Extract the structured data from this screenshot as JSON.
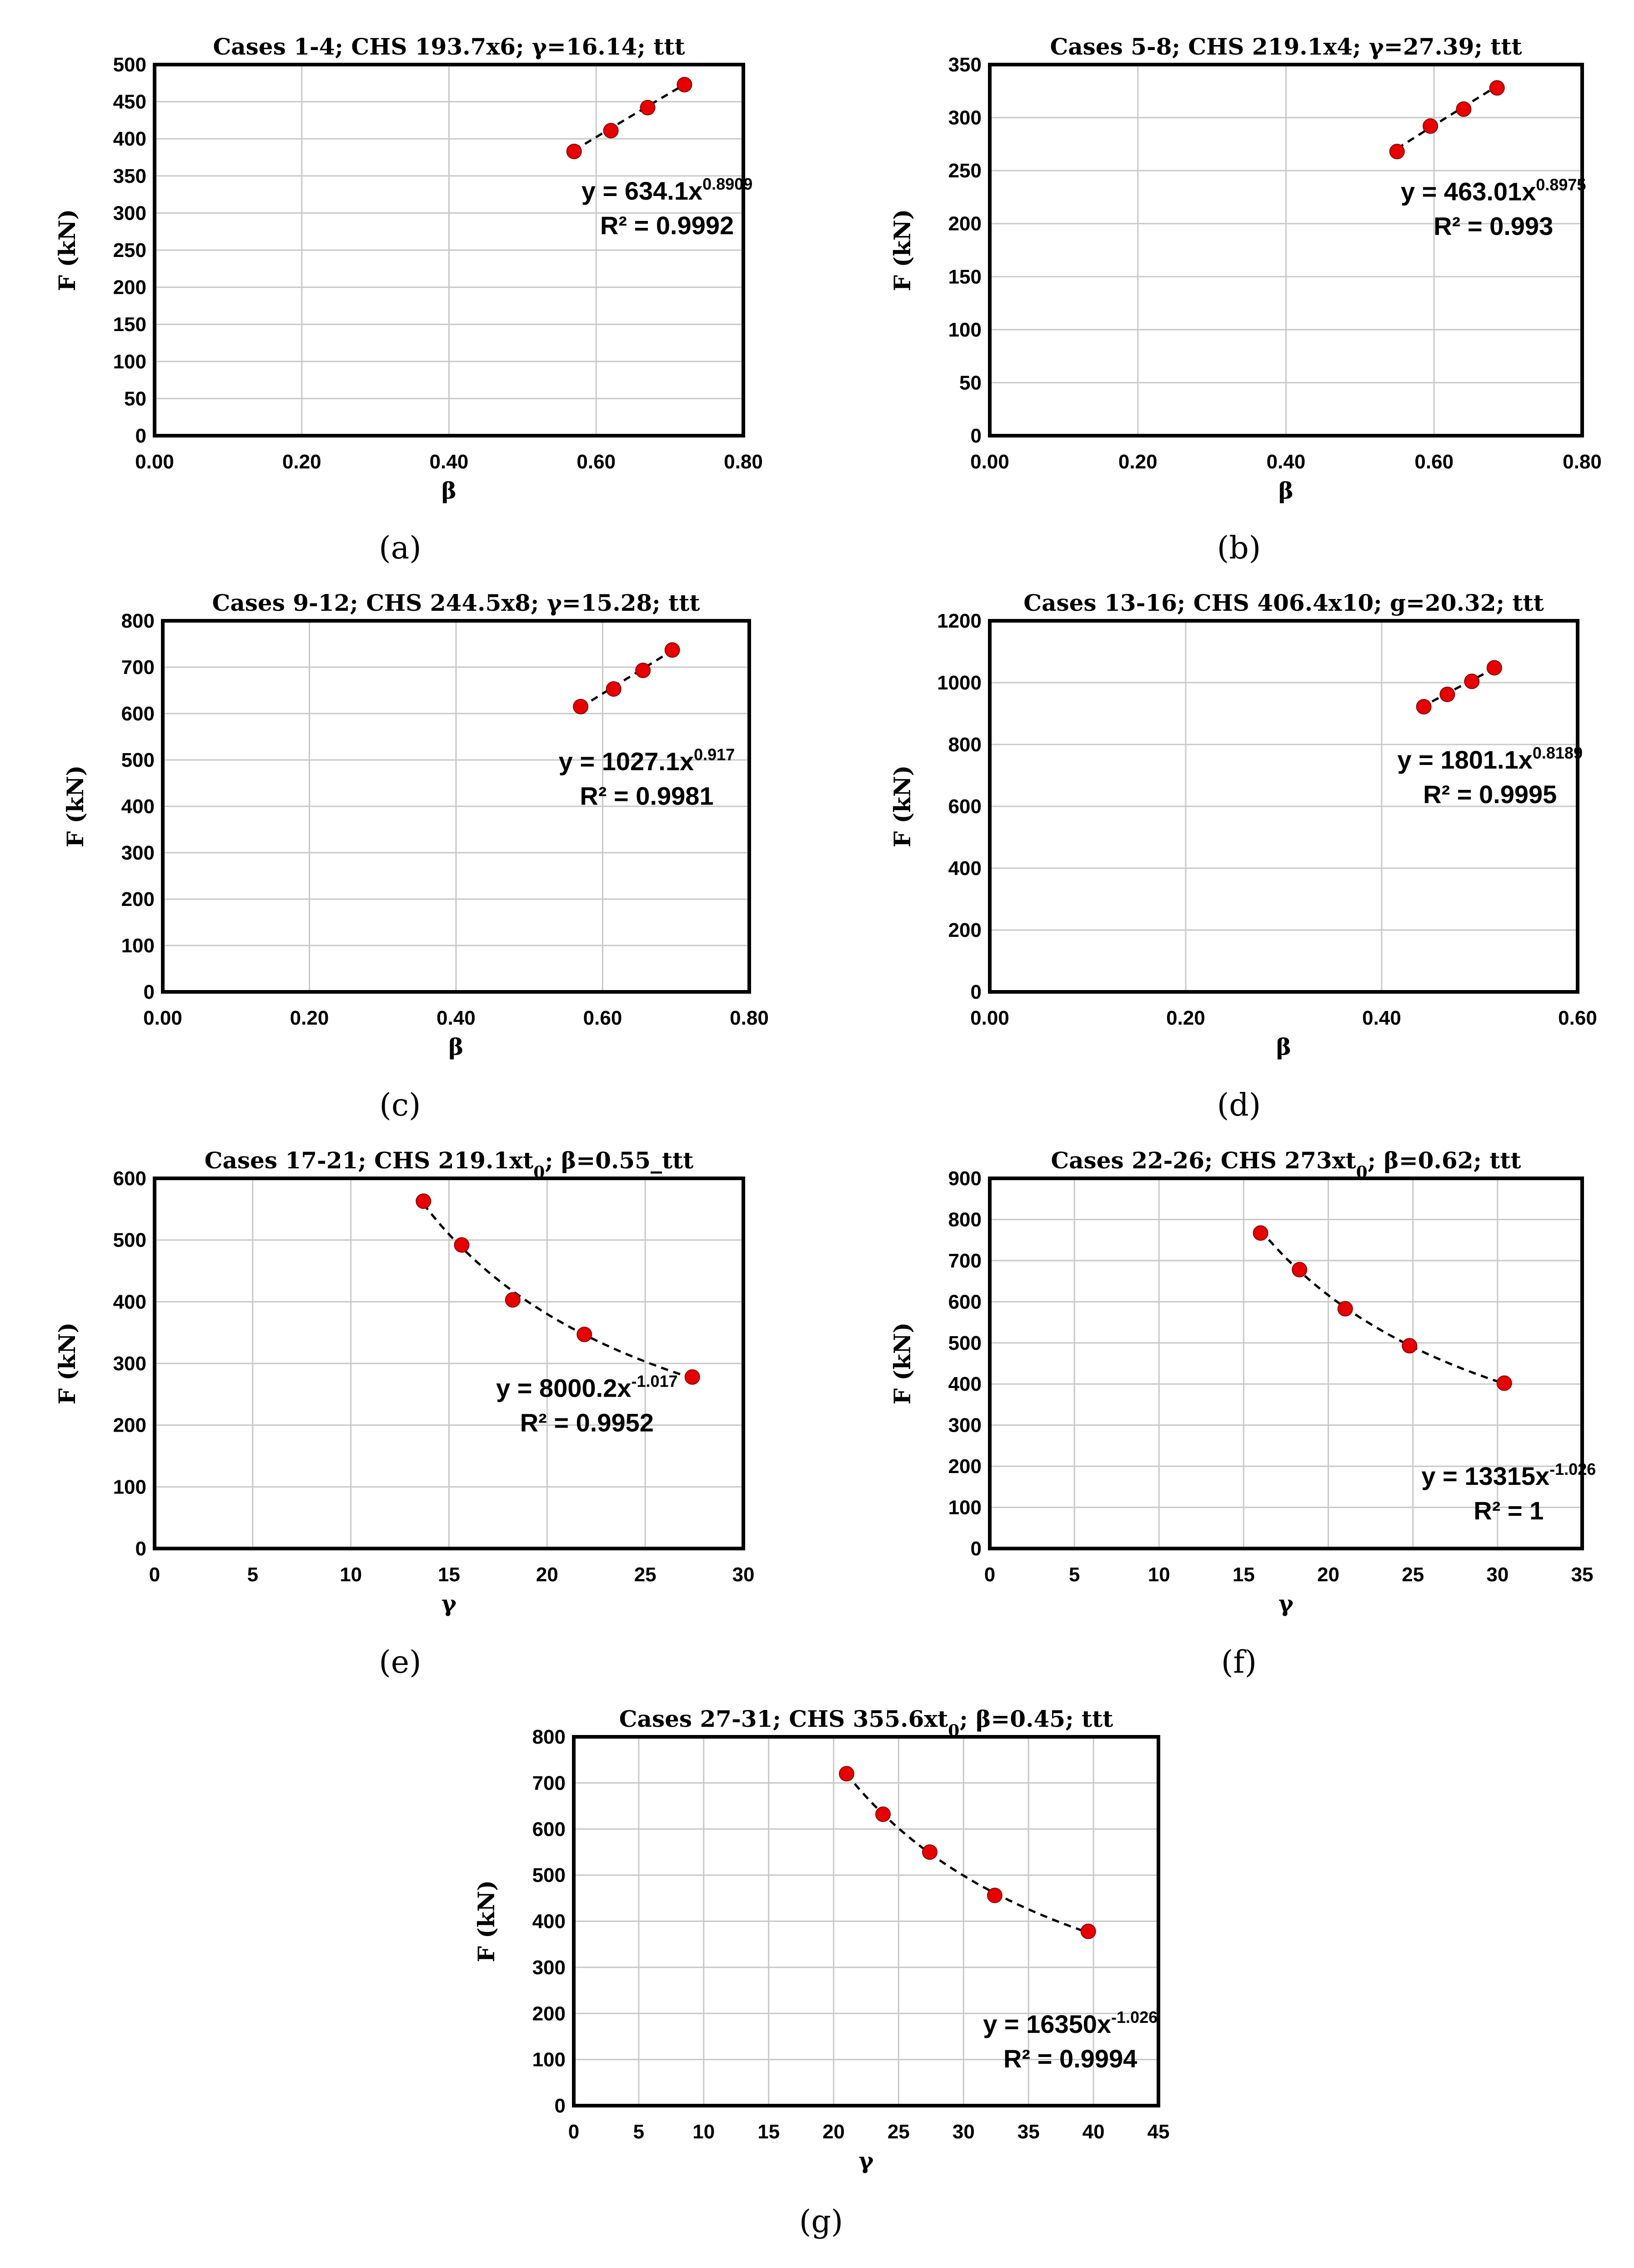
{
  "figure": {
    "panel_labels": [
      "(a)",
      "(b)",
      "(c)",
      "(d)",
      "(e)",
      "(f)",
      "(g)"
    ]
  },
  "chart_data": [
    {
      "id": "a",
      "type": "scatter",
      "title": "Cases 1-4; CHS 193.7x6; γ=16.14; ttt",
      "xlabel": "β",
      "ylabel": "F (kN)",
      "xlim": [
        0,
        0.8
      ],
      "ylim": [
        0,
        500
      ],
      "xticks": [
        0,
        0.2,
        0.4,
        0.6,
        0.8
      ],
      "xtick_labels": [
        "0.00",
        "0.20",
        "0.40",
        "0.60",
        "0.80"
      ],
      "yticks": [
        0,
        50,
        100,
        150,
        200,
        250,
        300,
        350,
        400,
        450,
        500
      ],
      "ytick_labels": [
        "0",
        "50",
        "100",
        "150",
        "200",
        "250",
        "300",
        "350",
        "400",
        "450",
        "500"
      ],
      "x": [
        0.57,
        0.62,
        0.67,
        0.72
      ],
      "y": [
        383,
        411,
        442,
        473
      ],
      "trendline": {
        "type": "power",
        "a": 634.1,
        "b": 0.8909,
        "range": [
          0.57,
          0.725
        ]
      },
      "equation": {
        "base": "y = 634.1x",
        "exp": "0.8909",
        "r2": "R² = 0.9992"
      },
      "equation_at": [
        0.58,
        318
      ]
    },
    {
      "id": "b",
      "type": "scatter",
      "title": "Cases 5-8; CHS 219.1x4; γ=27.39; ttt",
      "xlabel": "β",
      "ylabel": "F (kN)",
      "xlim": [
        0,
        0.8
      ],
      "ylim": [
        0,
        350
      ],
      "xticks": [
        0,
        0.2,
        0.4,
        0.6,
        0.8
      ],
      "xtick_labels": [
        "0.00",
        "0.20",
        "0.40",
        "0.60",
        "0.80"
      ],
      "yticks": [
        0,
        50,
        100,
        150,
        200,
        250,
        300,
        350
      ],
      "ytick_labels": [
        "0",
        "50",
        "100",
        "150",
        "200",
        "250",
        "300",
        "350"
      ],
      "x": [
        0.55,
        0.595,
        0.64,
        0.685
      ],
      "y": [
        268,
        292,
        308,
        328
      ],
      "trendline": {
        "type": "power",
        "a": 463.01,
        "b": 0.8975,
        "range": [
          0.55,
          0.69
        ]
      },
      "equation": {
        "base": "y = 463.01x",
        "exp": "0.8975",
        "r2": "R² = 0.993"
      },
      "equation_at": [
        0.555,
        222
      ]
    },
    {
      "id": "c",
      "type": "scatter",
      "title": "Cases 9-12; CHS 244.5x8; γ=15.28; ttt",
      "xlabel": "β",
      "ylabel": "F (kN)",
      "xlim": [
        0,
        0.8
      ],
      "ylim": [
        0,
        800
      ],
      "xticks": [
        0,
        0.2,
        0.4,
        0.6,
        0.8
      ],
      "xtick_labels": [
        "0.00",
        "0.20",
        "0.40",
        "0.60",
        "0.80"
      ],
      "yticks": [
        0,
        100,
        200,
        300,
        400,
        500,
        600,
        700,
        800
      ],
      "ytick_labels": [
        "0",
        "100",
        "200",
        "300",
        "400",
        "500",
        "600",
        "700",
        "800"
      ],
      "x": [
        0.57,
        0.615,
        0.655,
        0.695
      ],
      "y": [
        615,
        653,
        693,
        737
      ],
      "trendline": {
        "type": "power",
        "a": 1027.1,
        "b": 0.917,
        "range": [
          0.57,
          0.7
        ]
      },
      "equation": {
        "base": "y = 1027.1x",
        "exp": "0.917",
        "r2": "R² = 0.9981"
      },
      "equation_at": [
        0.54,
        478
      ]
    },
    {
      "id": "d",
      "type": "scatter",
      "title": "Cases 13-16; CHS 406.4x10; g=20.32; ttt",
      "xlabel": "β",
      "ylabel": "F (kN)",
      "xlim": [
        0,
        0.6
      ],
      "ylim": [
        0,
        1200
      ],
      "xticks": [
        0,
        0.2,
        0.4,
        0.6
      ],
      "xtick_labels": [
        "0.00",
        "0.20",
        "0.40",
        "0.60"
      ],
      "yticks": [
        0,
        200,
        400,
        600,
        800,
        1000,
        1200
      ],
      "ytick_labels": [
        "0",
        "200",
        "400",
        "600",
        "800",
        "1000",
        "1200"
      ],
      "x": [
        0.443,
        0.467,
        0.492,
        0.515
      ],
      "y": [
        922,
        962,
        1004,
        1048
      ],
      "trendline": {
        "type": "power",
        "a": 1801.1,
        "b": 0.8189,
        "range": [
          0.44,
          0.518
        ]
      },
      "equation": {
        "base": "y = 1801.1x",
        "exp": "0.8189",
        "r2": "R² = 0.9995"
      },
      "equation_at": [
        0.416,
        722
      ]
    },
    {
      "id": "e",
      "type": "scatter",
      "title_parts": [
        "Cases 17-21; CHS 219.1xt",
        "0",
        "; β=0.55_ttt"
      ],
      "xlabel": "γ",
      "ylabel": "F (kN)",
      "xlim": [
        0,
        30
      ],
      "ylim": [
        0,
        600
      ],
      "xticks": [
        0,
        5,
        10,
        15,
        20,
        25,
        30
      ],
      "xtick_labels": [
        "0",
        "5",
        "10",
        "15",
        "20",
        "25",
        "30"
      ],
      "yticks": [
        0,
        100,
        200,
        300,
        400,
        500,
        600
      ],
      "ytick_labels": [
        "0",
        "100",
        "200",
        "300",
        "400",
        "500",
        "600"
      ],
      "x": [
        13.7,
        15.65,
        18.25,
        21.9,
        27.4
      ],
      "y": [
        563,
        492,
        403,
        347,
        278
      ],
      "trendline": {
        "type": "power",
        "a": 8000.2,
        "b": -1.017,
        "range": [
          13.7,
          27.4
        ]
      },
      "equation": {
        "base": "y = 8000.2x",
        "exp": "-1.017",
        "r2": "R² = 0.9952"
      },
      "equation_at": [
        17.4,
        246
      ]
    },
    {
      "id": "f",
      "type": "scatter",
      "title_parts": [
        "Cases 22-26; CHS 273xt",
        "0",
        "; β=0.62; ttt"
      ],
      "xlabel": "γ",
      "ylabel": "F (kN)",
      "xlim": [
        0,
        35
      ],
      "ylim": [
        0,
        900
      ],
      "xticks": [
        0,
        5,
        10,
        15,
        20,
        25,
        30,
        35
      ],
      "xtick_labels": [
        "0",
        "5",
        "10",
        "15",
        "20",
        "25",
        "30",
        "35"
      ],
      "yticks": [
        0,
        100,
        200,
        300,
        400,
        500,
        600,
        700,
        800,
        900
      ],
      "ytick_labels": [
        "0",
        "100",
        "200",
        "300",
        "400",
        "500",
        "600",
        "700",
        "800",
        "900"
      ],
      "x": [
        16.0,
        18.3,
        21.0,
        24.8,
        30.4
      ],
      "y": [
        767,
        678,
        583,
        493,
        402
      ],
      "trendline": {
        "type": "power",
        "a": 13315,
        "b": -1.026,
        "range": [
          16.0,
          30.4
        ]
      },
      "equation": {
        "base": "y = 13315x",
        "exp": "-1.026",
        "r2": "R² = 1"
      },
      "equation_at": [
        25.5,
        155
      ]
    },
    {
      "id": "g",
      "type": "scatter",
      "title_parts": [
        "Cases 27-31; CHS 355.6xt",
        "0",
        "; β=0.45; ttt"
      ],
      "xlabel": "γ",
      "ylabel": "F (kN)",
      "xlim": [
        0,
        45
      ],
      "ylim": [
        0,
        800
      ],
      "xticks": [
        0,
        5,
        10,
        15,
        20,
        25,
        30,
        35,
        40,
        45
      ],
      "xtick_labels": [
        "0",
        "5",
        "10",
        "15",
        "20",
        "25",
        "30",
        "35",
        "40",
        "45"
      ],
      "yticks": [
        0,
        100,
        200,
        300,
        400,
        500,
        600,
        700,
        800
      ],
      "ytick_labels": [
        "0",
        "100",
        "200",
        "300",
        "400",
        "500",
        "600",
        "700",
        "800"
      ],
      "x": [
        21.0,
        23.8,
        27.4,
        32.4,
        39.6
      ],
      "y": [
        720,
        632,
        550,
        456,
        378
      ],
      "trendline": {
        "type": "power",
        "a": 16350,
        "b": -1.026,
        "range": [
          21.0,
          39.6
        ]
      },
      "equation": {
        "base": "y = 16350x",
        "exp": "-1.026",
        "r2": "R² = 0.9994"
      },
      "equation_at": [
        31.5,
        158
      ]
    }
  ]
}
